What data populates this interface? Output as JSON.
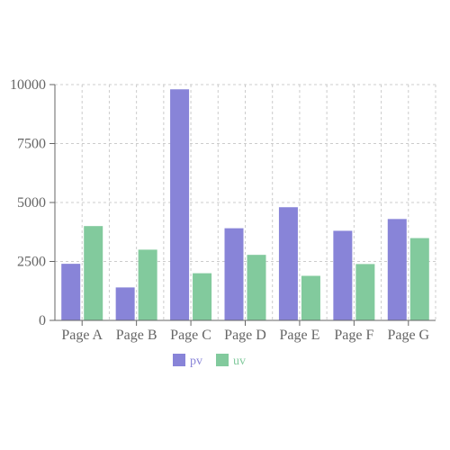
{
  "chart_data": {
    "type": "bar",
    "categories": [
      "Page A",
      "Page B",
      "Page C",
      "Page D",
      "Page E",
      "Page F",
      "Page G"
    ],
    "series": [
      {
        "name": "pv",
        "color": "#8884d8",
        "values": [
          2400,
          1398,
          9800,
          3908,
          4800,
          3800,
          4300
        ]
      },
      {
        "name": "uv",
        "color": "#82ca9d",
        "values": [
          4000,
          3000,
          2000,
          2780,
          1890,
          2390,
          3490
        ]
      }
    ],
    "y_ticks": [
      "0",
      "2500",
      "5000",
      "7500",
      "10000"
    ],
    "ylim": [
      0,
      10000
    ],
    "grid": true,
    "legend_position": "bottom-center",
    "title": "",
    "xlabel": "",
    "ylabel": ""
  }
}
